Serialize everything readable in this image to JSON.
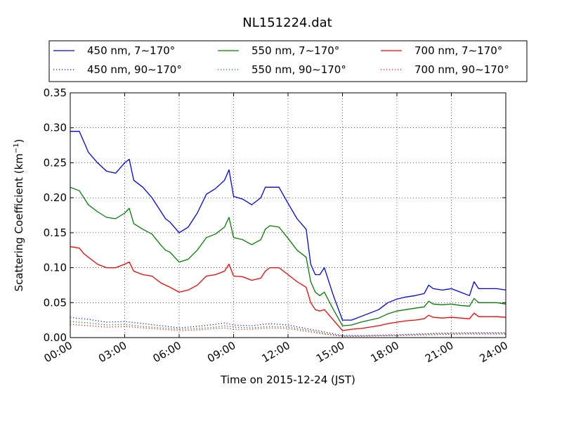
{
  "chart_data": {
    "type": "line",
    "title": "NL151224.dat",
    "xlabel": "Time on 2015-12-24 (JST)",
    "ylabel": "Scattering Coefficient (km",
    "ylabel_sup": "−1",
    "ylabel_end": ")",
    "xlim": [
      "00:00",
      "24:00"
    ],
    "ylim": [
      0,
      0.35
    ],
    "xticks": [
      "00:00",
      "03:00",
      "06:00",
      "09:00",
      "12:00",
      "15:00",
      "18:00",
      "21:00",
      "24:00"
    ],
    "yticks": [
      "0.00",
      "0.05",
      "0.10",
      "0.15",
      "0.20",
      "0.25",
      "0.30",
      "0.35"
    ],
    "grid": true,
    "legend_position": "top, outside plot, 3 columns",
    "series": [
      {
        "name": "450 nm, 7∼170°",
        "color": "#0000ff",
        "style": "solid",
        "x": [
          "00:00",
          "00:30",
          "00:45",
          "01:00",
          "01:30",
          "02:00",
          "02:30",
          "03:00",
          "03:15",
          "03:30",
          "04:00",
          "04:30",
          "05:00",
          "05:15",
          "05:30",
          "06:00",
          "06:30",
          "07:00",
          "07:30",
          "08:00",
          "08:30",
          "08:45",
          "09:00",
          "09:30",
          "10:00",
          "10:30",
          "10:45",
          "11:00",
          "11:30",
          "12:00",
          "12:30",
          "13:00",
          "13:15",
          "13:30",
          "13:45",
          "14:00",
          "14:30",
          "15:00",
          "15:30",
          "16:00",
          "16:30",
          "17:00",
          "17:30",
          "18:00",
          "18:30",
          "19:00",
          "19:30",
          "19:45",
          "20:00",
          "20:30",
          "21:00",
          "21:30",
          "22:00",
          "22:15",
          "22:30",
          "23:00",
          "23:30",
          "24:00"
        ],
        "y": [
          0.295,
          0.295,
          0.28,
          0.265,
          0.25,
          0.238,
          0.235,
          0.25,
          0.255,
          0.225,
          0.215,
          0.2,
          0.18,
          0.17,
          0.165,
          0.15,
          0.158,
          0.178,
          0.205,
          0.213,
          0.225,
          0.24,
          0.202,
          0.198,
          0.19,
          0.2,
          0.215,
          0.215,
          0.215,
          0.192,
          0.17,
          0.155,
          0.105,
          0.09,
          0.09,
          0.1,
          0.06,
          0.025,
          0.025,
          0.03,
          0.035,
          0.04,
          0.05,
          0.055,
          0.058,
          0.06,
          0.063,
          0.075,
          0.07,
          0.068,
          0.07,
          0.065,
          0.06,
          0.08,
          0.07,
          0.07,
          0.07,
          0.068
        ]
      },
      {
        "name": "550 nm, 7∼170°",
        "color": "#008000",
        "style": "solid",
        "x": [
          "00:00",
          "00:30",
          "00:45",
          "01:00",
          "01:30",
          "02:00",
          "02:30",
          "03:00",
          "03:15",
          "03:30",
          "04:00",
          "04:30",
          "05:00",
          "05:15",
          "05:30",
          "06:00",
          "06:30",
          "07:00",
          "07:30",
          "08:00",
          "08:30",
          "08:45",
          "09:00",
          "09:30",
          "10:00",
          "10:30",
          "10:45",
          "11:00",
          "11:30",
          "12:00",
          "12:30",
          "13:00",
          "13:15",
          "13:30",
          "13:45",
          "14:00",
          "14:30",
          "15:00",
          "15:30",
          "16:00",
          "16:30",
          "17:00",
          "17:30",
          "18:00",
          "18:30",
          "19:00",
          "19:30",
          "19:45",
          "20:00",
          "20:30",
          "21:00",
          "21:30",
          "22:00",
          "22:15",
          "22:30",
          "23:00",
          "23:30",
          "24:00"
        ],
        "y": [
          0.215,
          0.21,
          0.2,
          0.19,
          0.18,
          0.172,
          0.17,
          0.178,
          0.185,
          0.163,
          0.155,
          0.148,
          0.132,
          0.125,
          0.122,
          0.108,
          0.112,
          0.125,
          0.143,
          0.148,
          0.158,
          0.172,
          0.143,
          0.14,
          0.133,
          0.14,
          0.155,
          0.16,
          0.158,
          0.142,
          0.125,
          0.115,
          0.08,
          0.065,
          0.06,
          0.065,
          0.04,
          0.017,
          0.018,
          0.022,
          0.025,
          0.028,
          0.034,
          0.038,
          0.04,
          0.042,
          0.044,
          0.052,
          0.048,
          0.047,
          0.048,
          0.046,
          0.045,
          0.056,
          0.05,
          0.05,
          0.05,
          0.048
        ]
      },
      {
        "name": "700 nm, 7∼170°",
        "color": "#ff0000",
        "style": "solid",
        "x": [
          "00:00",
          "00:30",
          "00:45",
          "01:00",
          "01:30",
          "02:00",
          "02:30",
          "03:00",
          "03:15",
          "03:30",
          "04:00",
          "04:30",
          "05:00",
          "05:15",
          "05:30",
          "06:00",
          "06:30",
          "07:00",
          "07:30",
          "08:00",
          "08:30",
          "08:45",
          "09:00",
          "09:30",
          "10:00",
          "10:30",
          "10:45",
          "11:00",
          "11:30",
          "12:00",
          "12:30",
          "13:00",
          "13:15",
          "13:30",
          "13:45",
          "14:00",
          "14:30",
          "15:00",
          "15:30",
          "16:00",
          "16:30",
          "17:00",
          "17:30",
          "18:00",
          "18:30",
          "19:00",
          "19:30",
          "19:45",
          "20:00",
          "20:30",
          "21:00",
          "21:30",
          "22:00",
          "22:15",
          "22:30",
          "23:00",
          "23:30",
          "24:00"
        ],
        "y": [
          0.13,
          0.128,
          0.12,
          0.115,
          0.105,
          0.1,
          0.1,
          0.105,
          0.108,
          0.095,
          0.09,
          0.088,
          0.078,
          0.075,
          0.072,
          0.065,
          0.068,
          0.075,
          0.088,
          0.09,
          0.095,
          0.105,
          0.088,
          0.087,
          0.082,
          0.085,
          0.095,
          0.1,
          0.1,
          0.09,
          0.08,
          0.072,
          0.05,
          0.04,
          0.038,
          0.04,
          0.025,
          0.01,
          0.012,
          0.013,
          0.015,
          0.017,
          0.02,
          0.022,
          0.024,
          0.025,
          0.027,
          0.032,
          0.029,
          0.028,
          0.029,
          0.028,
          0.027,
          0.035,
          0.03,
          0.03,
          0.03,
          0.029
        ]
      },
      {
        "name": "450 nm, 90∼170°",
        "color": "#0000ff",
        "style": "dotted",
        "x": [
          "00:00",
          "01:00",
          "02:00",
          "03:00",
          "04:00",
          "05:00",
          "06:00",
          "07:00",
          "08:00",
          "08:30",
          "09:00",
          "10:00",
          "11:00",
          "12:00",
          "13:00",
          "14:00",
          "15:00",
          "16:00",
          "18:00",
          "20:00",
          "22:00",
          "24:00"
        ],
        "y": [
          0.029,
          0.026,
          0.022,
          0.023,
          0.02,
          0.017,
          0.014,
          0.016,
          0.019,
          0.021,
          0.018,
          0.017,
          0.02,
          0.018,
          0.013,
          0.008,
          0.003,
          0.003,
          0.004,
          0.006,
          0.007,
          0.007
        ]
      },
      {
        "name": "550 nm, 90∼170°",
        "color": "#008000",
        "style": "dotted",
        "x": [
          "00:00",
          "01:00",
          "02:00",
          "03:00",
          "04:00",
          "05:00",
          "06:00",
          "07:00",
          "08:00",
          "08:30",
          "09:00",
          "10:00",
          "11:00",
          "12:00",
          "13:00",
          "14:00",
          "15:00",
          "16:00",
          "18:00",
          "20:00",
          "22:00",
          "24:00"
        ],
        "y": [
          0.023,
          0.021,
          0.018,
          0.019,
          0.016,
          0.014,
          0.012,
          0.013,
          0.015,
          0.017,
          0.015,
          0.014,
          0.016,
          0.015,
          0.011,
          0.006,
          0.002,
          0.002,
          0.003,
          0.005,
          0.006,
          0.006
        ]
      },
      {
        "name": "700 nm, 90∼170°",
        "color": "#ff0000",
        "style": "dotted",
        "x": [
          "00:00",
          "01:00",
          "02:00",
          "03:00",
          "04:00",
          "05:00",
          "06:00",
          "07:00",
          "08:00",
          "08:30",
          "09:00",
          "10:00",
          "11:00",
          "12:00",
          "13:00",
          "14:00",
          "15:00",
          "16:00",
          "18:00",
          "20:00",
          "22:00",
          "24:00"
        ],
        "y": [
          0.019,
          0.017,
          0.015,
          0.016,
          0.014,
          0.012,
          0.01,
          0.011,
          0.013,
          0.014,
          0.012,
          0.012,
          0.014,
          0.013,
          0.009,
          0.005,
          0.002,
          0.002,
          0.003,
          0.004,
          0.005,
          0.005
        ]
      }
    ]
  }
}
